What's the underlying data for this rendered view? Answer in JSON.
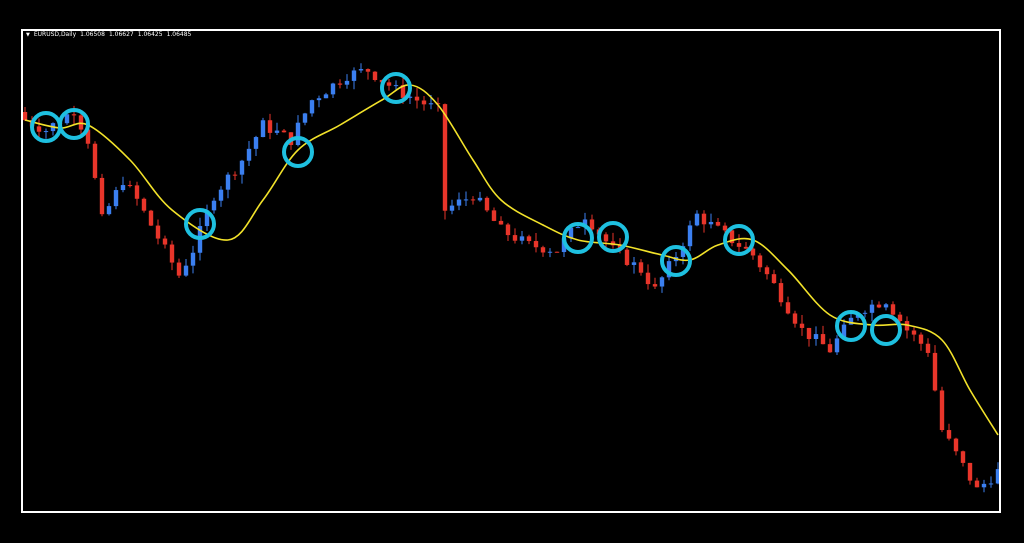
{
  "window": {
    "symbol": "EURUSD,Daily",
    "open": "1.06508",
    "high": "1.06627",
    "low": "1.06425",
    "close": "1.06485",
    "menu_icon": "triangle-down-icon"
  },
  "colors": {
    "background": "#000000",
    "frame": "#ffffff",
    "bull_candle": "#3b7ff0",
    "bear_candle": "#e8352a",
    "moving_average": "#f2e22a",
    "highlight_circle": "#1ec0e0"
  },
  "chart_data": {
    "type": "candlestick",
    "title": "",
    "candle_count": 140,
    "price_path": [
      [
        0,
        1.1
      ],
      [
        3,
        1.099
      ],
      [
        7,
        1.101
      ],
      [
        9,
        1.098
      ],
      [
        11,
        1.09
      ],
      [
        14,
        1.094
      ],
      [
        16,
        1.092
      ],
      [
        20,
        1.087
      ],
      [
        22,
        1.0845
      ],
      [
        24,
        1.087
      ],
      [
        27,
        1.0925
      ],
      [
        31,
        1.096
      ],
      [
        34,
        1.0995
      ],
      [
        38,
        1.098
      ],
      [
        41,
        1.102
      ],
      [
        46,
        1.1045
      ],
      [
        49,
        1.105
      ],
      [
        53,
        1.103
      ],
      [
        56,
        1.102
      ],
      [
        59,
        1.101
      ],
      [
        60,
        1.091
      ],
      [
        64,
        1.0925
      ],
      [
        68,
        1.089
      ],
      [
        72,
        1.0875
      ],
      [
        76,
        1.087
      ],
      [
        80,
        1.0905
      ],
      [
        84,
        1.087
      ],
      [
        88,
        1.085
      ],
      [
        90,
        1.083
      ],
      [
        93,
        1.0865
      ],
      [
        96,
        1.0905
      ],
      [
        99,
        1.089
      ],
      [
        104,
        1.0865
      ],
      [
        107,
        1.0835
      ],
      [
        111,
        1.079
      ],
      [
        115,
        1.077
      ],
      [
        119,
        1.081
      ],
      [
        123,
        1.082
      ],
      [
        126,
        1.079
      ],
      [
        129,
        1.077
      ],
      [
        131,
        1.069
      ],
      [
        136,
        1.063
      ],
      [
        139,
        1.06485
      ]
    ],
    "moving_average": [
      [
        0,
        1.1
      ],
      [
        5,
        1.0992
      ],
      [
        9,
        1.0995
      ],
      [
        15,
        1.096
      ],
      [
        21,
        1.091
      ],
      [
        29,
        1.088
      ],
      [
        34,
        1.092
      ],
      [
        39,
        1.097
      ],
      [
        45,
        1.0995
      ],
      [
        51,
        1.102
      ],
      [
        55,
        1.1035
      ],
      [
        59,
        1.1015
      ],
      [
        64,
        1.096
      ],
      [
        68,
        1.092
      ],
      [
        74,
        1.0895
      ],
      [
        79,
        1.088
      ],
      [
        85,
        1.0875
      ],
      [
        91,
        1.0865
      ],
      [
        95,
        1.086
      ],
      [
        99,
        1.0875
      ],
      [
        104,
        1.088
      ],
      [
        109,
        1.085
      ],
      [
        115,
        1.0805
      ],
      [
        121,
        1.0795
      ],
      [
        126,
        1.0795
      ],
      [
        131,
        1.078
      ],
      [
        135,
        1.073
      ],
      [
        139,
        1.0685
      ]
    ],
    "highlight_points": [
      [
        3,
        1.0993
      ],
      [
        7,
        1.0996
      ],
      [
        25,
        1.0896
      ],
      [
        39,
        1.0968
      ],
      [
        53,
        1.1032
      ],
      [
        79,
        1.0882
      ],
      [
        84,
        1.0883
      ],
      [
        93,
        1.0859
      ],
      [
        102,
        1.088
      ],
      [
        118,
        1.0794
      ],
      [
        123,
        1.079
      ]
    ],
    "price_range": [
      1.0608,
      1.109
    ]
  }
}
